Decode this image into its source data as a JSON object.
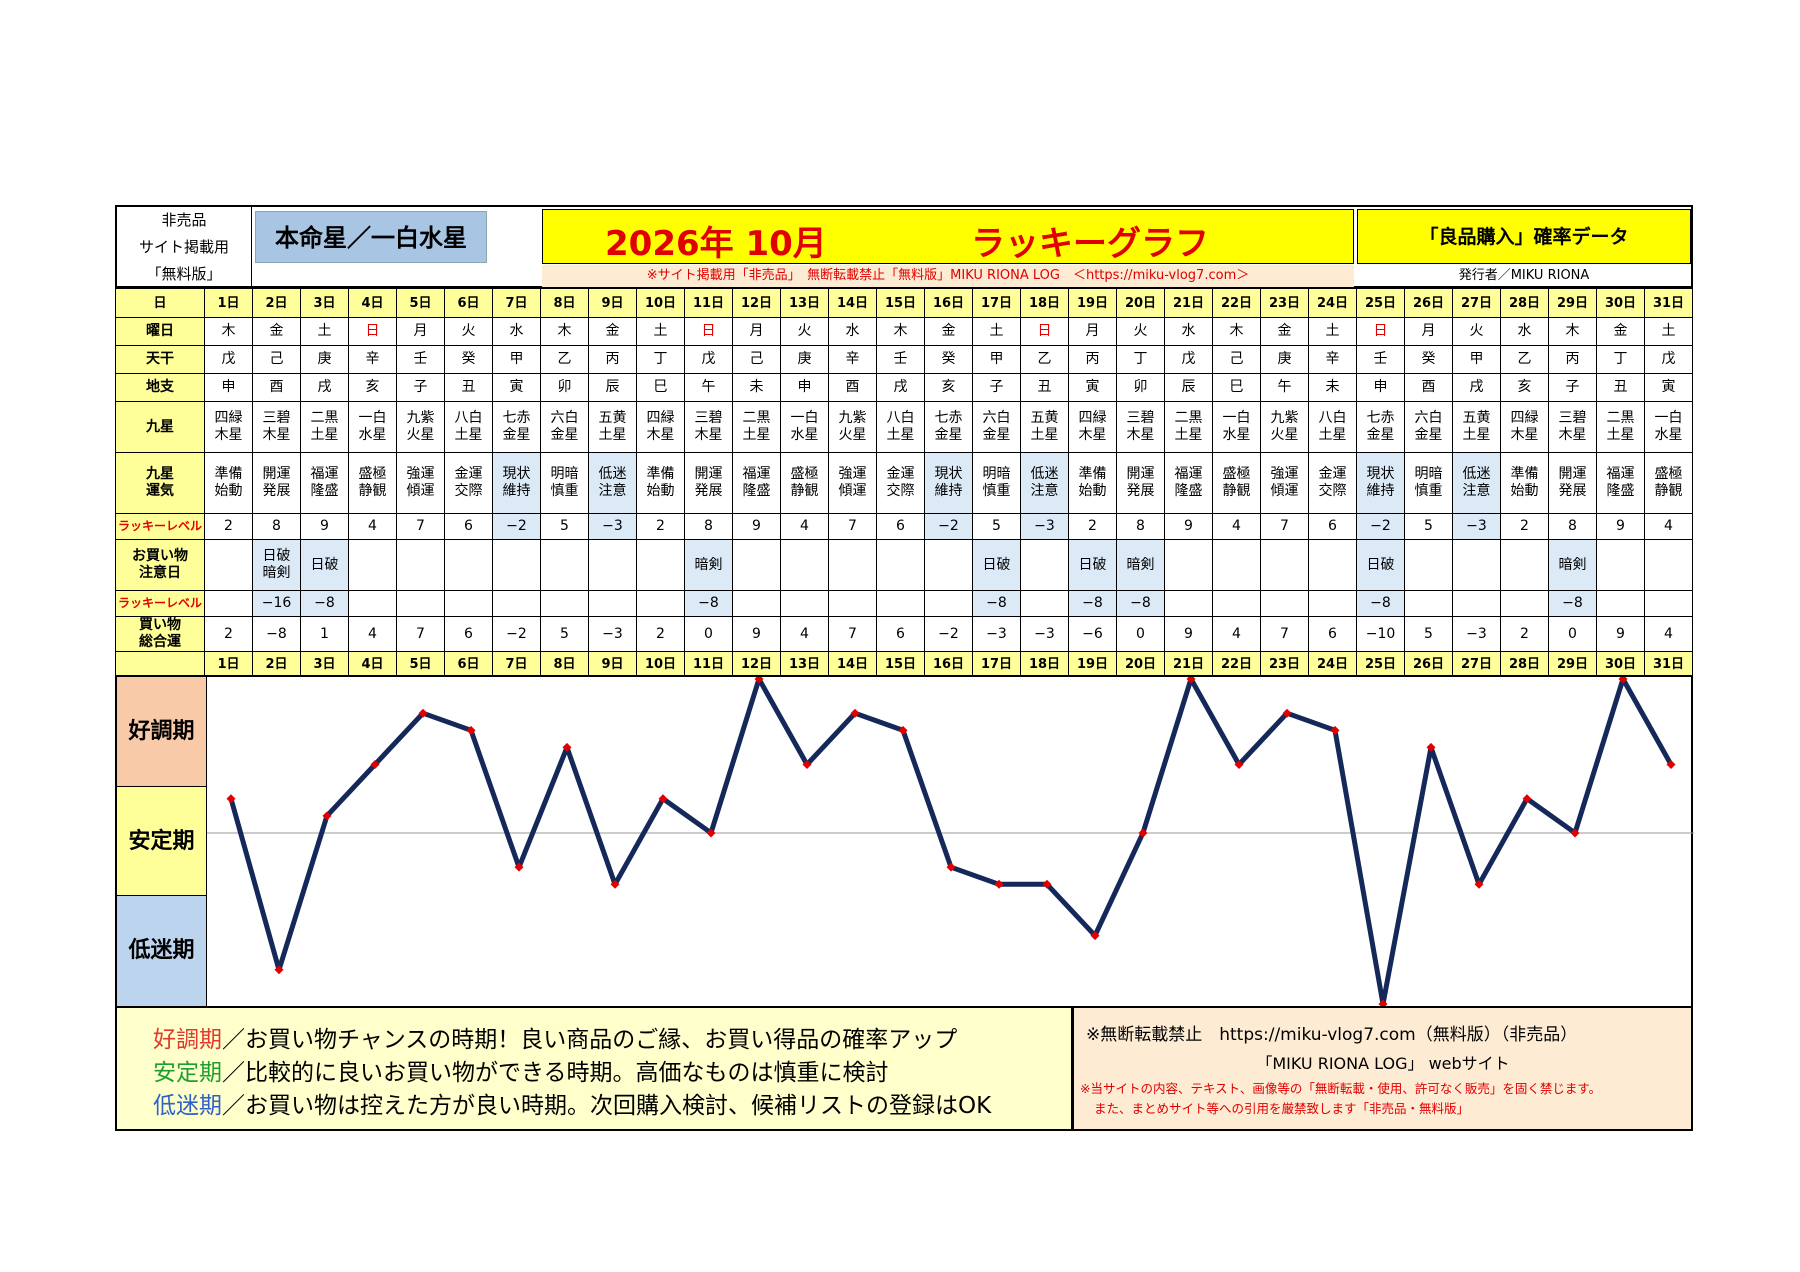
{
  "header": {
    "nonsale": [
      "非売品",
      "サイト掲載用",
      "「無料版」"
    ],
    "honmei": "本命星／一白水星",
    "title_date": "2026年 10月",
    "title_graph": "ラッキーグラフ",
    "subtitle": "※サイト掲載用「非売品」　無断転載禁止「無料版」MIKU RIONA LOG　＜https://miku-vlog7.com＞",
    "data_title": "「良品購入」確率データ",
    "publisher": "発行者／MIKU RIONA"
  },
  "labels": {
    "day": "日",
    "weekday": "曜日",
    "tenkan": "天干",
    "chishi": "地支",
    "kyusei": "九星",
    "kyusei_luck": "九星運気",
    "lucky_level": "ラッキーレベル",
    "caution": "お買い物注意日",
    "lucky_level2": "ラッキーレベル",
    "total": "買い物総合運"
  },
  "days": [
    "1日",
    "2日",
    "3日",
    "4日",
    "5日",
    "6日",
    "7日",
    "8日",
    "9日",
    "10日",
    "11日",
    "12日",
    "13日",
    "14日",
    "15日",
    "16日",
    "17日",
    "18日",
    "19日",
    "20日",
    "21日",
    "22日",
    "23日",
    "24日",
    "25日",
    "26日",
    "27日",
    "28日",
    "29日",
    "30日",
    "31日"
  ],
  "weekdays": [
    "木",
    "金",
    "土",
    "日",
    "月",
    "火",
    "水",
    "木",
    "金",
    "土",
    "日",
    "月",
    "火",
    "水",
    "木",
    "金",
    "土",
    "日",
    "月",
    "火",
    "水",
    "木",
    "金",
    "土",
    "日",
    "月",
    "火",
    "水",
    "木",
    "金",
    "土"
  ],
  "tenkan": [
    "戊",
    "己",
    "庚",
    "辛",
    "壬",
    "癸",
    "甲",
    "乙",
    "丙",
    "丁",
    "戊",
    "己",
    "庚",
    "辛",
    "壬",
    "癸",
    "甲",
    "乙",
    "丙",
    "丁",
    "戊",
    "己",
    "庚",
    "辛",
    "壬",
    "癸",
    "甲",
    "乙",
    "丙",
    "丁",
    "戊"
  ],
  "chishi": [
    "申",
    "酉",
    "戌",
    "亥",
    "子",
    "丑",
    "寅",
    "卯",
    "辰",
    "巳",
    "午",
    "未",
    "申",
    "酉",
    "戌",
    "亥",
    "子",
    "丑",
    "寅",
    "卯",
    "辰",
    "巳",
    "午",
    "未",
    "申",
    "酉",
    "戌",
    "亥",
    "子",
    "丑",
    "寅"
  ],
  "kyusei": [
    "四緑木星",
    "三碧木星",
    "二黒土星",
    "一白水星",
    "九紫火星",
    "八白土星",
    "七赤金星",
    "六白金星",
    "五黄土星",
    "四緑木星",
    "三碧木星",
    "二黒土星",
    "一白水星",
    "九紫火星",
    "八白土星",
    "七赤金星",
    "六白金星",
    "五黄土星",
    "四緑木星",
    "三碧木星",
    "二黒土星",
    "一白水星",
    "九紫火星",
    "八白土星",
    "七赤金星",
    "六白金星",
    "五黄土星",
    "四緑木星",
    "三碧木星",
    "二黒土星",
    "一白水星"
  ],
  "luck": [
    "準備始動",
    "開運発展",
    "福運隆盛",
    "盛極静観",
    "強運傾運",
    "金運交際",
    "現状維持",
    "明暗慎重",
    "低迷注意",
    "準備始動",
    "開運発展",
    "福運隆盛",
    "盛極静観",
    "強運傾運",
    "金運交際",
    "現状維持",
    "明暗慎重",
    "低迷注意",
    "準備始動",
    "開運発展",
    "福運隆盛",
    "盛極静観",
    "強運傾運",
    "金運交際",
    "現状維持",
    "明暗慎重",
    "低迷注意",
    "準備始動",
    "開運発展",
    "福運隆盛",
    "盛極静観"
  ],
  "lucky_levels": [
    "2",
    "8",
    "9",
    "4",
    "7",
    "6",
    "−2",
    "5",
    "−3",
    "2",
    "8",
    "9",
    "4",
    "7",
    "6",
    "−2",
    "5",
    "−3",
    "2",
    "8",
    "9",
    "4",
    "7",
    "6",
    "−2",
    "5",
    "−3",
    "2",
    "8",
    "9",
    "4"
  ],
  "caution_days": [
    "",
    "日破暗剣",
    "日破",
    "",
    "",
    "",
    "",
    "",
    "",
    "",
    "暗剣",
    "",
    "",
    "",
    "",
    "",
    "日破",
    "",
    "日破",
    "暗剣",
    "",
    "",
    "",
    "",
    "日破",
    "",
    "",
    "",
    "暗剣",
    "",
    ""
  ],
  "caution_levels": [
    "",
    "−16",
    "−8",
    "",
    "",
    "",
    "",
    "",
    "",
    "",
    "−8",
    "",
    "",
    "",
    "",
    "",
    "−8",
    "",
    "−8",
    "−8",
    "",
    "",
    "",
    "",
    "−8",
    "",
    "",
    "",
    "−8",
    "",
    ""
  ],
  "totals": [
    "2",
    "−8",
    "1",
    "4",
    "7",
    "6",
    "−2",
    "5",
    "−3",
    "2",
    "0",
    "9",
    "4",
    "7",
    "6",
    "−2",
    "−3",
    "−3",
    "−6",
    "0",
    "9",
    "4",
    "7",
    "6",
    "−10",
    "5",
    "−3",
    "2",
    "0",
    "9",
    "4"
  ],
  "zones": {
    "good": "好調期",
    "stable": "安定期",
    "low": "低迷期"
  },
  "legend": {
    "good_term": "好調期",
    "good_text": "／お買い物チャンスの時期！良い商品のご縁、お買い得品の確率アップ",
    "stable_term": "安定期",
    "stable_text": "／比較的に良いお買い物ができる時期。高価なものは慎重に検討",
    "low_term": "低迷期",
    "low_text": "／お買い物は控えた方が良い時期。次回購入検討、候補リストの登録はOK"
  },
  "notice": {
    "line1": "※無断転載禁止　https://miku-vlog7.com（無料版）（非売品）",
    "line2": "「MIKU RIONA LOG」 webサイト",
    "line3": "※当サイトの内容、テキスト、画像等の「無断転載・使用、許可なく販売」を固く禁じます。",
    "line4": "また、まとめサイト等への引用を厳禁致します「非売品・無料版」"
  },
  "colors": {
    "line": "#14285a",
    "marker": "#e00000",
    "highlight_blue": "#dce9f7",
    "header_yellow": "#ffff99",
    "title_yellow": "#ffff00",
    "good_zone": "#f8caa8",
    "low_zone": "#bcd4ee",
    "legend_good": "#e03a2e",
    "legend_stable": "#1e9e2e",
    "legend_low": "#2e62c8"
  },
  "chart_data": {
    "type": "line",
    "title": "",
    "xlabel": "",
    "ylabel": "",
    "categories": [
      "1日",
      "2日",
      "3日",
      "4日",
      "5日",
      "6日",
      "7日",
      "8日",
      "9日",
      "10日",
      "11日",
      "12日",
      "13日",
      "14日",
      "15日",
      "16日",
      "17日",
      "18日",
      "19日",
      "20日",
      "21日",
      "22日",
      "23日",
      "24日",
      "25日",
      "26日",
      "27日",
      "28日",
      "29日",
      "30日",
      "31日"
    ],
    "series": [
      {
        "values": [
          2,
          -8,
          1,
          4,
          7,
          6,
          -2,
          5,
          -3,
          2,
          0,
          9,
          4,
          7,
          6,
          -2,
          -3,
          -3,
          -6,
          0,
          9,
          4,
          7,
          6,
          -10,
          5,
          -3,
          2,
          0,
          9,
          4
        ]
      }
    ],
    "ylim": [
      -10,
      9
    ],
    "reference_line": 0,
    "grid": false
  }
}
